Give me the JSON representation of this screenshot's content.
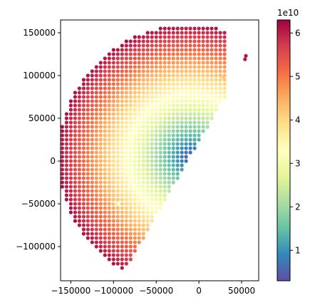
{
  "chart_data": {
    "type": "scatter",
    "title": "",
    "xlabel": "",
    "ylabel": "",
    "xlim": [
      -162000,
      70000
    ],
    "ylim": [
      -140000,
      165000
    ],
    "x_ticks": [
      {
        "value": -150000,
        "label": "−150000"
      },
      {
        "value": -100000,
        "label": "−100000"
      },
      {
        "value": -50000,
        "label": "−50000"
      },
      {
        "value": 0,
        "label": "0"
      },
      {
        "value": 50000,
        "label": "50000"
      }
    ],
    "y_ticks": [
      {
        "value": 150000,
        "label": "150000"
      },
      {
        "value": 100000,
        "label": "100000"
      },
      {
        "value": 50000,
        "label": "50000"
      },
      {
        "value": 0,
        "label": "0"
      },
      {
        "value": -50000,
        "label": "−50000"
      },
      {
        "value": -100000,
        "label": "−100000"
      }
    ],
    "colorbar": {
      "colormap": "Spectral_r",
      "vmin": 3000000000.0,
      "vmax": 63000000000.0,
      "exponent_label": "1e10",
      "ticks": [
        {
          "value": 10000000000.0,
          "label": "1"
        },
        {
          "value": 20000000000.0,
          "label": "2"
        },
        {
          "value": 30000000000.0,
          "label": "3"
        },
        {
          "value": 40000000000.0,
          "label": "4"
        },
        {
          "value": 50000000000.0,
          "label": "5"
        },
        {
          "value": 60000000000.0,
          "label": "6"
        }
      ]
    },
    "field": {
      "grid_spacing": 5000,
      "center": [
        -10000,
        5000
      ],
      "outer_radius": 155000,
      "inner_radius": 0,
      "theta_min_deg": 93,
      "theta_max_deg": 240,
      "color_model": "value rises away from a low zone near (-10000, 5000) toward the outer rim",
      "notes": "approximate representation of a dense fan-shaped grid of colored points"
    },
    "extra_points": [
      {
        "x": 54000,
        "y": 119000,
        "value": 61000000000.0
      },
      {
        "x": 55000,
        "y": 123000,
        "value": 61000000000.0
      },
      {
        "x": 29000,
        "y": 98000,
        "value": 42000000000.0
      },
      {
        "x": -98000,
        "y": -48000,
        "value": 33000000000.0
      },
      {
        "x": -94000,
        "y": -50000,
        "value": 33000000000.0
      }
    ],
    "grid": false,
    "legend": "none"
  }
}
